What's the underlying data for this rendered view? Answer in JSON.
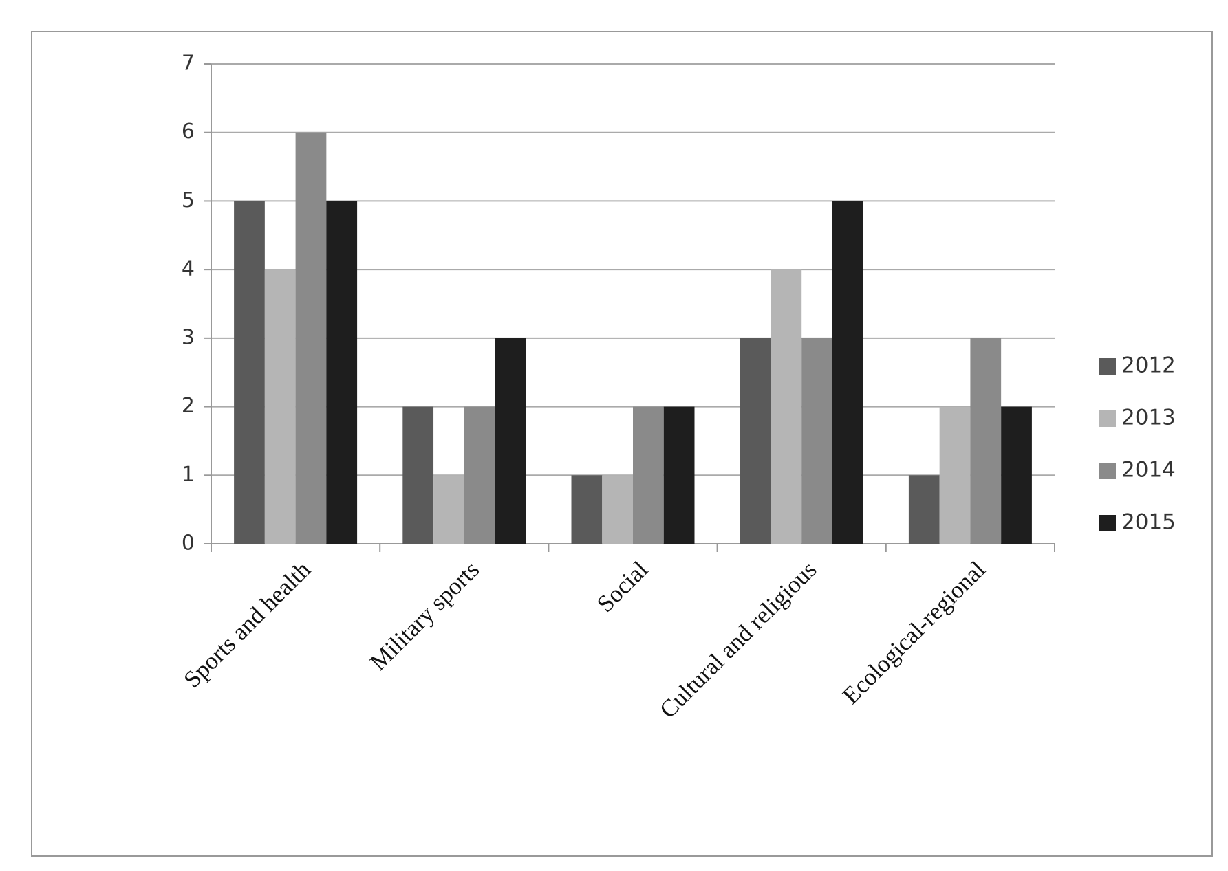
{
  "chart_data": {
    "type": "bar",
    "categories": [
      "Sports and health",
      "Military sports",
      "Social",
      "Cultural and religious",
      "Ecological-regional"
    ],
    "series": [
      {
        "name": "2012",
        "color": "#5a5a5a",
        "values": [
          5,
          2,
          1,
          3,
          1
        ]
      },
      {
        "name": "2013",
        "color": "#b5b5b5",
        "values": [
          4,
          1,
          1,
          4,
          2
        ]
      },
      {
        "name": "2014",
        "color": "#8a8a8a",
        "values": [
          6,
          2,
          2,
          3,
          3
        ]
      },
      {
        "name": "2015",
        "color": "#1e1e1e",
        "values": [
          5,
          3,
          2,
          5,
          2
        ]
      }
    ],
    "ylim": [
      0,
      7
    ],
    "yticks": [
      0,
      1,
      2,
      3,
      4,
      5,
      6,
      7
    ],
    "grid": true,
    "legend": "right"
  }
}
